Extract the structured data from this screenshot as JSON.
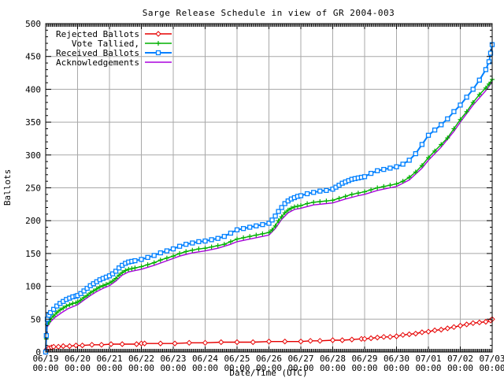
{
  "chart_data": {
    "type": "line",
    "title": "Sarge Release Schedule in view of GR 2004-003",
    "xlabel": "Date/Time (UTC)",
    "ylabel": "Ballots",
    "xlim": [
      0,
      14
    ],
    "ylim": [
      0,
      500
    ],
    "grid": true,
    "legend_position": "top-left",
    "x_ticks": [
      "06/19",
      "06/20",
      "06/21",
      "06/22",
      "06/23",
      "06/24",
      "06/25",
      "06/26",
      "06/27",
      "06/28",
      "06/29",
      "06/30",
      "07/01",
      "07/02",
      "07/03"
    ],
    "x_tick_sub": "00:00",
    "y_ticks": [
      0,
      50,
      100,
      150,
      200,
      250,
      300,
      350,
      400,
      450,
      500
    ],
    "colors": {
      "grid": "#a8a8a8",
      "border": "#000000",
      "tick": "#000000"
    },
    "series": [
      {
        "name": "Rejected Ballots",
        "color": "#e60000",
        "marker": "diamond",
        "points": [
          [
            0,
            0
          ],
          [
            0.03,
            4
          ],
          [
            0.1,
            6
          ],
          [
            0.18,
            7
          ],
          [
            0.25,
            8
          ],
          [
            0.4,
            8
          ],
          [
            0.55,
            9
          ],
          [
            0.75,
            9
          ],
          [
            0.95,
            10
          ],
          [
            1.15,
            10
          ],
          [
            1.45,
            11
          ],
          [
            1.75,
            11
          ],
          [
            2.05,
            12
          ],
          [
            2.4,
            12
          ],
          [
            2.85,
            12
          ],
          [
            3.0,
            13
          ],
          [
            3.1,
            13
          ],
          [
            3.6,
            13
          ],
          [
            4.05,
            13
          ],
          [
            4.5,
            14
          ],
          [
            5.0,
            14
          ],
          [
            5.5,
            15
          ],
          [
            6.0,
            15
          ],
          [
            6.5,
            15
          ],
          [
            7.0,
            16
          ],
          [
            7.5,
            16
          ],
          [
            8.0,
            16
          ],
          [
            8.3,
            17
          ],
          [
            8.6,
            17
          ],
          [
            9.0,
            18
          ],
          [
            9.3,
            18
          ],
          [
            9.6,
            19
          ],
          [
            9.9,
            20
          ],
          [
            10.0,
            20
          ],
          [
            10.2,
            21
          ],
          [
            10.4,
            22
          ],
          [
            10.6,
            23
          ],
          [
            10.8,
            23
          ],
          [
            11.0,
            24
          ],
          [
            11.2,
            26
          ],
          [
            11.4,
            27
          ],
          [
            11.6,
            28
          ],
          [
            11.8,
            30
          ],
          [
            12.0,
            31
          ],
          [
            12.2,
            33
          ],
          [
            12.4,
            34
          ],
          [
            12.6,
            36
          ],
          [
            12.8,
            38
          ],
          [
            13.0,
            40
          ],
          [
            13.2,
            42
          ],
          [
            13.4,
            44
          ],
          [
            13.6,
            45
          ],
          [
            13.8,
            46
          ],
          [
            13.95,
            48
          ],
          [
            14.0,
            50
          ]
        ]
      },
      {
        "name": "Vote Tallied,",
        "color": "#00b000",
        "marker": "plus",
        "points": [
          [
            0,
            0
          ],
          [
            0.02,
            20
          ],
          [
            0.05,
            42
          ],
          [
            0.1,
            46
          ],
          [
            0.15,
            50
          ],
          [
            0.25,
            55
          ],
          [
            0.35,
            60
          ],
          [
            0.45,
            64
          ],
          [
            0.55,
            67
          ],
          [
            0.65,
            70
          ],
          [
            0.75,
            72
          ],
          [
            0.85,
            74
          ],
          [
            0.95,
            75
          ],
          [
            1.0,
            76
          ],
          [
            1.1,
            79
          ],
          [
            1.2,
            83
          ],
          [
            1.3,
            86
          ],
          [
            1.4,
            90
          ],
          [
            1.5,
            93
          ],
          [
            1.6,
            96
          ],
          [
            1.7,
            99
          ],
          [
            1.8,
            101
          ],
          [
            1.9,
            103
          ],
          [
            2.0,
            105
          ],
          [
            2.1,
            108
          ],
          [
            2.2,
            112
          ],
          [
            2.3,
            117
          ],
          [
            2.4,
            121
          ],
          [
            2.5,
            124
          ],
          [
            2.6,
            126
          ],
          [
            2.7,
            127
          ],
          [
            2.8,
            128
          ],
          [
            3.0,
            130
          ],
          [
            3.2,
            133
          ],
          [
            3.4,
            136
          ],
          [
            3.6,
            140
          ],
          [
            3.8,
            143
          ],
          [
            4.0,
            146
          ],
          [
            4.2,
            150
          ],
          [
            4.4,
            153
          ],
          [
            4.6,
            155
          ],
          [
            4.8,
            157
          ],
          [
            5.0,
            158
          ],
          [
            5.2,
            160
          ],
          [
            5.4,
            162
          ],
          [
            5.6,
            164
          ],
          [
            5.8,
            168
          ],
          [
            6.0,
            172
          ],
          [
            6.2,
            174
          ],
          [
            6.4,
            176
          ],
          [
            6.6,
            178
          ],
          [
            6.8,
            180
          ],
          [
            7.0,
            182
          ],
          [
            7.1,
            186
          ],
          [
            7.2,
            192
          ],
          [
            7.3,
            200
          ],
          [
            7.4,
            206
          ],
          [
            7.5,
            212
          ],
          [
            7.6,
            216
          ],
          [
            7.7,
            219
          ],
          [
            7.8,
            221
          ],
          [
            7.9,
            222
          ],
          [
            8.0,
            223
          ],
          [
            8.2,
            226
          ],
          [
            8.4,
            228
          ],
          [
            8.6,
            229
          ],
          [
            8.8,
            230
          ],
          [
            9.0,
            231
          ],
          [
            9.2,
            234
          ],
          [
            9.4,
            237
          ],
          [
            9.6,
            240
          ],
          [
            9.8,
            242
          ],
          [
            10.0,
            244
          ],
          [
            10.2,
            247
          ],
          [
            10.4,
            250
          ],
          [
            10.6,
            252
          ],
          [
            10.8,
            254
          ],
          [
            11.0,
            256
          ],
          [
            11.2,
            260
          ],
          [
            11.4,
            266
          ],
          [
            11.6,
            274
          ],
          [
            11.8,
            284
          ],
          [
            12.0,
            296
          ],
          [
            12.2,
            306
          ],
          [
            12.4,
            316
          ],
          [
            12.6,
            326
          ],
          [
            12.8,
            340
          ],
          [
            13.0,
            354
          ],
          [
            13.2,
            366
          ],
          [
            13.4,
            380
          ],
          [
            13.6,
            392
          ],
          [
            13.8,
            402
          ],
          [
            13.9,
            408
          ],
          [
            14.0,
            415
          ]
        ]
      },
      {
        "name": "Received Ballots",
        "color": "#0080ff",
        "marker": "square",
        "points": [
          [
            0,
            0
          ],
          [
            0.02,
            25
          ],
          [
            0.05,
            50
          ],
          [
            0.1,
            56
          ],
          [
            0.15,
            60
          ],
          [
            0.25,
            65
          ],
          [
            0.35,
            70
          ],
          [
            0.45,
            74
          ],
          [
            0.55,
            77
          ],
          [
            0.65,
            80
          ],
          [
            0.75,
            82
          ],
          [
            0.85,
            84
          ],
          [
            0.95,
            85
          ],
          [
            1.0,
            86
          ],
          [
            1.1,
            89
          ],
          [
            1.2,
            93
          ],
          [
            1.3,
            97
          ],
          [
            1.4,
            101
          ],
          [
            1.5,
            104
          ],
          [
            1.6,
            107
          ],
          [
            1.7,
            110
          ],
          [
            1.8,
            112
          ],
          [
            1.9,
            114
          ],
          [
            2.0,
            116
          ],
          [
            2.1,
            119
          ],
          [
            2.2,
            123
          ],
          [
            2.3,
            128
          ],
          [
            2.4,
            132
          ],
          [
            2.5,
            135
          ],
          [
            2.6,
            137
          ],
          [
            2.7,
            138
          ],
          [
            2.8,
            139
          ],
          [
            3.0,
            141
          ],
          [
            3.2,
            144
          ],
          [
            3.4,
            147
          ],
          [
            3.6,
            151
          ],
          [
            3.8,
            154
          ],
          [
            4.0,
            157
          ],
          [
            4.2,
            161
          ],
          [
            4.4,
            164
          ],
          [
            4.6,
            166
          ],
          [
            4.8,
            168
          ],
          [
            5.0,
            169
          ],
          [
            5.2,
            171
          ],
          [
            5.4,
            173
          ],
          [
            5.6,
            176
          ],
          [
            5.8,
            181
          ],
          [
            6.0,
            186
          ],
          [
            6.2,
            188
          ],
          [
            6.4,
            190
          ],
          [
            6.6,
            192
          ],
          [
            6.8,
            194
          ],
          [
            7.0,
            196
          ],
          [
            7.1,
            201
          ],
          [
            7.2,
            207
          ],
          [
            7.3,
            214
          ],
          [
            7.4,
            220
          ],
          [
            7.5,
            226
          ],
          [
            7.6,
            230
          ],
          [
            7.7,
            233
          ],
          [
            7.8,
            235
          ],
          [
            7.9,
            237
          ],
          [
            8.0,
            238
          ],
          [
            8.2,
            241
          ],
          [
            8.4,
            243
          ],
          [
            8.6,
            245
          ],
          [
            8.8,
            246
          ],
          [
            9.0,
            248
          ],
          [
            9.1,
            251
          ],
          [
            9.2,
            254
          ],
          [
            9.3,
            257
          ],
          [
            9.4,
            259
          ],
          [
            9.5,
            261
          ],
          [
            9.6,
            263
          ],
          [
            9.7,
            264
          ],
          [
            9.8,
            265
          ],
          [
            9.9,
            266
          ],
          [
            10.0,
            267
          ],
          [
            10.2,
            272
          ],
          [
            10.4,
            276
          ],
          [
            10.6,
            278
          ],
          [
            10.8,
            280
          ],
          [
            11.0,
            282
          ],
          [
            11.2,
            286
          ],
          [
            11.4,
            292
          ],
          [
            11.6,
            302
          ],
          [
            11.8,
            316
          ],
          [
            12.0,
            330
          ],
          [
            12.2,
            338
          ],
          [
            12.4,
            346
          ],
          [
            12.6,
            355
          ],
          [
            12.8,
            366
          ],
          [
            13.0,
            376
          ],
          [
            13.2,
            388
          ],
          [
            13.4,
            400
          ],
          [
            13.6,
            414
          ],
          [
            13.8,
            430
          ],
          [
            13.9,
            442
          ],
          [
            13.95,
            455
          ],
          [
            14.0,
            468
          ]
        ]
      },
      {
        "name": "Acknowledgements",
        "color": "#aa00dd",
        "marker": "none",
        "points": [
          [
            0,
            0
          ],
          [
            0.05,
            38
          ],
          [
            0.15,
            46
          ],
          [
            0.3,
            53
          ],
          [
            0.5,
            60
          ],
          [
            0.7,
            66
          ],
          [
            0.9,
            70
          ],
          [
            1.0,
            72
          ],
          [
            1.2,
            79
          ],
          [
            1.4,
            86
          ],
          [
            1.6,
            92
          ],
          [
            1.8,
            97
          ],
          [
            2.0,
            101
          ],
          [
            2.2,
            108
          ],
          [
            2.4,
            117
          ],
          [
            2.6,
            122
          ],
          [
            2.8,
            124
          ],
          [
            3.0,
            126
          ],
          [
            3.4,
            132
          ],
          [
            3.8,
            139
          ],
          [
            4.2,
            146
          ],
          [
            4.6,
            151
          ],
          [
            5.0,
            154
          ],
          [
            5.4,
            158
          ],
          [
            5.8,
            164
          ],
          [
            6.0,
            168
          ],
          [
            6.4,
            172
          ],
          [
            6.8,
            176
          ],
          [
            7.0,
            178
          ],
          [
            7.2,
            188
          ],
          [
            7.4,
            202
          ],
          [
            7.6,
            212
          ],
          [
            7.8,
            217
          ],
          [
            8.0,
            219
          ],
          [
            8.4,
            224
          ],
          [
            8.8,
            226
          ],
          [
            9.0,
            227
          ],
          [
            9.4,
            233
          ],
          [
            9.8,
            238
          ],
          [
            10.0,
            240
          ],
          [
            10.4,
            246
          ],
          [
            10.8,
            250
          ],
          [
            11.0,
            252
          ],
          [
            11.4,
            262
          ],
          [
            11.8,
            280
          ],
          [
            12.0,
            292
          ],
          [
            12.4,
            312
          ],
          [
            12.8,
            336
          ],
          [
            13.0,
            350
          ],
          [
            13.4,
            376
          ],
          [
            13.8,
            398
          ],
          [
            14.0,
            411
          ]
        ]
      }
    ]
  }
}
